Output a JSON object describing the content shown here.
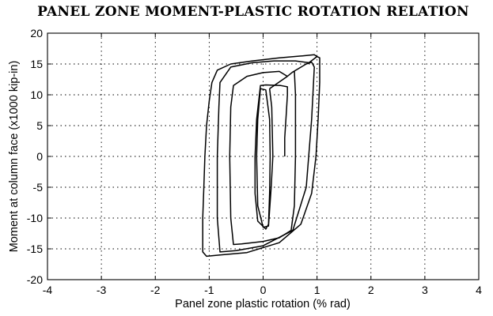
{
  "chart_data": {
    "type": "line",
    "title": "PANEL ZONE MOMENT-PLASTIC ROTATION RELATION",
    "xlabel": "Panel zone plastic rotation (% rad)",
    "ylabel": "Moment at column face (x1000 kip-in)",
    "xlim": [
      -4,
      4
    ],
    "ylim": [
      -20,
      20
    ],
    "xticks": [
      -4,
      -3,
      -2,
      -1,
      0,
      1,
      2,
      3,
      4
    ],
    "yticks": [
      -20,
      -15,
      -10,
      -5,
      0,
      5,
      10,
      15,
      20
    ],
    "grid": true,
    "line_color": "#000000",
    "series": [
      {
        "x": [
          0.4,
          0.4,
          0.43,
          0.45,
          0.45,
          0.33,
          0.05,
          -0.05,
          -0.12,
          -0.15,
          -0.15,
          -0.1,
          0.05,
          0.1,
          0.12,
          0.13,
          0.12,
          0.05,
          -0.05,
          -0.1,
          -0.12,
          -0.1,
          0.0,
          0.1,
          0.15,
          0.18,
          0.16,
          0.12
        ],
        "y": [
          0.0,
          3.0,
          7.0,
          10.0,
          11.3,
          11.5,
          11.6,
          11.5,
          6.0,
          0.0,
          -6.0,
          -10.5,
          -11.8,
          -11.0,
          -6.0,
          0.0,
          6.0,
          10.8,
          11.0,
          6.0,
          0.0,
          -8.0,
          -11.5,
          -11.3,
          -5.0,
          0.0,
          8.0,
          11.0
        ]
      },
      {
        "x": [
          0.12,
          0.45,
          0.55,
          0.58,
          0.6,
          0.6,
          0.58,
          0.52,
          0.3,
          0.0,
          -0.4,
          -0.55,
          -0.6,
          -0.62,
          -0.6,
          -0.55,
          -0.3,
          0.0,
          0.3,
          0.45,
          0.55
        ],
        "y": [
          11.0,
          13.0,
          13.7,
          13.8,
          10.0,
          0.0,
          -8.0,
          -12.0,
          -13.2,
          -13.8,
          -14.2,
          -14.3,
          -10.0,
          0.0,
          8.0,
          11.5,
          13.0,
          13.6,
          13.8,
          13.0,
          13.7
        ]
      },
      {
        "x": [
          0.55,
          0.8,
          0.9,
          0.95,
          0.9,
          0.8,
          0.55,
          0.0,
          -0.5,
          -0.8,
          -0.85,
          -0.85,
          -0.82,
          -0.8,
          -0.6,
          -0.2,
          0.2,
          0.6,
          0.85
        ],
        "y": [
          13.7,
          15.0,
          15.3,
          14.5,
          6.0,
          -5.0,
          -12.0,
          -14.5,
          -15.3,
          -15.5,
          -10.0,
          0.0,
          8.0,
          12.0,
          14.5,
          15.2,
          15.5,
          15.5,
          15.2
        ]
      },
      {
        "x": [
          0.85,
          1.0,
          1.05,
          1.05,
          1.02,
          0.98,
          0.9,
          0.7,
          0.3,
          -0.3,
          -0.8,
          -1.05,
          -1.12,
          -1.12,
          -1.1,
          -1.08,
          -1.05,
          -1.0,
          -0.95,
          -0.85,
          -0.6,
          -0.2,
          0.3,
          0.7,
          0.95,
          1.0
        ],
        "y": [
          15.2,
          16.2,
          16.0,
          12.0,
          6.0,
          0.0,
          -6.0,
          -11.0,
          -14.0,
          -15.6,
          -16.0,
          -16.2,
          -15.5,
          -10.0,
          -5.0,
          0.0,
          5.0,
          9.0,
          12.0,
          14.0,
          15.0,
          15.5,
          16.0,
          16.3,
          16.5,
          16.2
        ]
      }
    ]
  }
}
